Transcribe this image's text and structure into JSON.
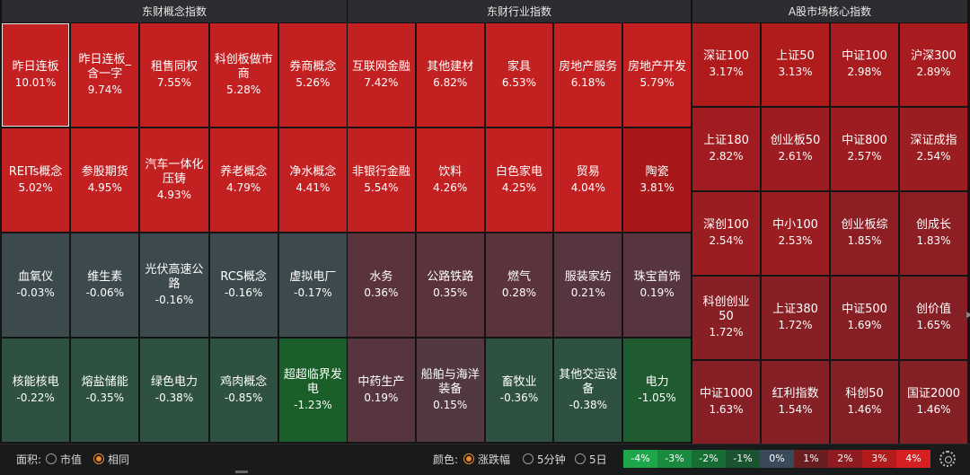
{
  "panels": [
    {
      "title": "东财概念指数",
      "tiles": [
        {
          "name": "昨日连板",
          "pct": "10.01%",
          "color": "#c32121",
          "selected": true
        },
        {
          "name": "昨日连板_含一字",
          "pct": "9.74%",
          "color": "#c32121"
        },
        {
          "name": "租售同权",
          "pct": "7.55%",
          "color": "#c32121"
        },
        {
          "name": "科创板做市商",
          "pct": "5.28%",
          "color": "#c32121"
        },
        {
          "name": "券商概念",
          "pct": "5.26%",
          "color": "#c32121"
        },
        {
          "name": "REITs概念",
          "pct": "5.02%",
          "color": "#c32121"
        },
        {
          "name": "参股期货",
          "pct": "4.95%",
          "color": "#c32121"
        },
        {
          "name": "汽车一体化压铸",
          "pct": "4.93%",
          "color": "#c32121"
        },
        {
          "name": "养老概念",
          "pct": "4.79%",
          "color": "#c32121"
        },
        {
          "name": "净水概念",
          "pct": "4.41%",
          "color": "#c32121"
        },
        {
          "name": "血氧仪",
          "pct": "-0.03%",
          "color": "#3c4a4e"
        },
        {
          "name": "维生素",
          "pct": "-0.06%",
          "color": "#3c4a4e"
        },
        {
          "name": "光伏高速公路",
          "pct": "-0.16%",
          "color": "#3c4a4e"
        },
        {
          "name": "RCS概念",
          "pct": "-0.16%",
          "color": "#3c4a4e"
        },
        {
          "name": "虚拟电厂",
          "pct": "-0.17%",
          "color": "#3c4a4e"
        },
        {
          "name": "核能核电",
          "pct": "-0.22%",
          "color": "#2f5142"
        },
        {
          "name": "熔盐储能",
          "pct": "-0.35%",
          "color": "#2f5142"
        },
        {
          "name": "绿色电力",
          "pct": "-0.38%",
          "color": "#2f5142"
        },
        {
          "name": "鸡肉概念",
          "pct": "-0.85%",
          "color": "#2f5142"
        },
        {
          "name": "超超临界发电",
          "pct": "-1.23%",
          "color": "#1a5e29"
        }
      ]
    },
    {
      "title": "东财行业指数",
      "tiles": [
        {
          "name": "互联网金融",
          "pct": "7.42%",
          "color": "#c32121"
        },
        {
          "name": "其他建材",
          "pct": "6.82%",
          "color": "#c32121"
        },
        {
          "name": "家具",
          "pct": "6.53%",
          "color": "#c32121"
        },
        {
          "name": "房地产服务",
          "pct": "6.18%",
          "color": "#c32121"
        },
        {
          "name": "房地产开发",
          "pct": "5.79%",
          "color": "#c32121"
        },
        {
          "name": "非银行金融",
          "pct": "5.54%",
          "color": "#c32121"
        },
        {
          "name": "饮料",
          "pct": "4.26%",
          "color": "#c32121"
        },
        {
          "name": "白色家电",
          "pct": "4.25%",
          "color": "#c32121"
        },
        {
          "name": "贸易",
          "pct": "4.04%",
          "color": "#c32121"
        },
        {
          "name": "陶瓷",
          "pct": "3.81%",
          "color": "#a81818"
        },
        {
          "name": "水务",
          "pct": "0.36%",
          "color": "#5a333c"
        },
        {
          "name": "公路铁路",
          "pct": "0.35%",
          "color": "#5a333c"
        },
        {
          "name": "燃气",
          "pct": "0.28%",
          "color": "#5a333c"
        },
        {
          "name": "服装家纺",
          "pct": "0.21%",
          "color": "#56353e"
        },
        {
          "name": "珠宝首饰",
          "pct": "0.19%",
          "color": "#56353e"
        },
        {
          "name": "中药生产",
          "pct": "0.19%",
          "color": "#56353e"
        },
        {
          "name": "船舶与海洋装备",
          "pct": "0.15%",
          "color": "#523840"
        },
        {
          "name": "畜牧业",
          "pct": "-0.36%",
          "color": "#2f5142"
        },
        {
          "name": "其他交运设备",
          "pct": "-0.38%",
          "color": "#2f5142"
        },
        {
          "name": "电力",
          "pct": "-1.05%",
          "color": "#1f5a31"
        }
      ]
    },
    {
      "title": "A股市场核心指数",
      "tiles": [
        {
          "name": "深证100",
          "pct": "3.17%",
          "color": "#b01b1b"
        },
        {
          "name": "上证50",
          "pct": "3.13%",
          "color": "#b01b1b"
        },
        {
          "name": "中证100",
          "pct": "2.98%",
          "color": "#a81b1f"
        },
        {
          "name": "沪深300",
          "pct": "2.89%",
          "color": "#a81b1f"
        },
        {
          "name": "上证180",
          "pct": "2.82%",
          "color": "#a01c20"
        },
        {
          "name": "创业板50",
          "pct": "2.61%",
          "color": "#9c1c21"
        },
        {
          "name": "中证800",
          "pct": "2.57%",
          "color": "#9c1c21"
        },
        {
          "name": "深证成指",
          "pct": "2.54%",
          "color": "#9a1d22"
        },
        {
          "name": "深创100",
          "pct": "2.54%",
          "color": "#9a1d22"
        },
        {
          "name": "中小100",
          "pct": "2.53%",
          "color": "#9a1d22"
        },
        {
          "name": "创业板综",
          "pct": "1.85%",
          "color": "#8c1e24"
        },
        {
          "name": "创成长",
          "pct": "1.83%",
          "color": "#8c1e24"
        },
        {
          "name": "科创创业50",
          "pct": "1.72%",
          "color": "#881f25"
        },
        {
          "name": "上证380",
          "pct": "1.72%",
          "color": "#881f25"
        },
        {
          "name": "中证500",
          "pct": "1.69%",
          "color": "#881f25"
        },
        {
          "name": "创价值",
          "pct": "1.65%",
          "color": "#861f25"
        },
        {
          "name": "中证1000",
          "pct": "1.63%",
          "color": "#861f25"
        },
        {
          "name": "红利指数",
          "pct": "1.54%",
          "color": "#842026"
        },
        {
          "name": "科创50",
          "pct": "1.46%",
          "color": "#822026"
        },
        {
          "name": "国证2000",
          "pct": "1.46%",
          "color": "#822026"
        }
      ]
    }
  ],
  "footer": {
    "area_label": "面积:",
    "area_options": [
      {
        "label": "市值",
        "selected": false
      },
      {
        "label": "相同",
        "selected": true
      }
    ],
    "color_label": "颜色:",
    "color_options": [
      {
        "label": "涨跌幅",
        "selected": true
      },
      {
        "label": "5分钟",
        "selected": false
      },
      {
        "label": "5日",
        "selected": false
      }
    ],
    "legend": [
      {
        "label": "-4%",
        "color": "#1ea64a"
      },
      {
        "label": "-3%",
        "color": "#1a8a3e"
      },
      {
        "label": "-2%",
        "color": "#166e33"
      },
      {
        "label": "-1%",
        "color": "#1a5430"
      },
      {
        "label": "0%",
        "color": "#3b4a5a"
      },
      {
        "label": "1%",
        "color": "#6a1e22"
      },
      {
        "label": "2%",
        "color": "#8e1c20"
      },
      {
        "label": "3%",
        "color": "#b01c1c"
      },
      {
        "label": "4%",
        "color": "#d42020"
      }
    ],
    "settings_icon": "gear-icon"
  }
}
